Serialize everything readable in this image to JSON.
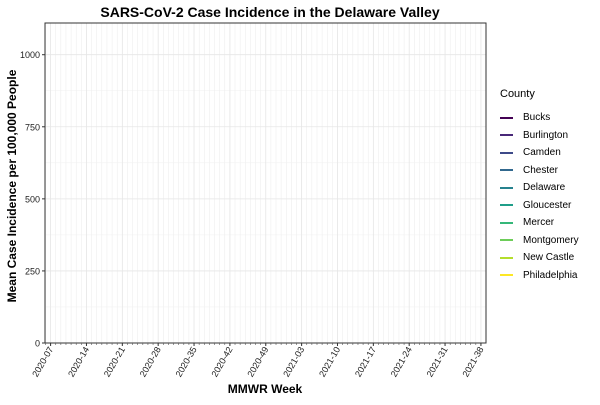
{
  "chart_data": {
    "type": "line",
    "title": "SARS-CoV-2 Case Incidence in the Delaware Valley",
    "xlabel": "MMWR Week",
    "ylabel": "Mean Case Incidence per 100,000 People",
    "ylim": [
      0,
      1110
    ],
    "y_ticks": [
      0,
      250,
      500,
      750,
      1000
    ],
    "x_ticks": [
      "2020-07",
      "2020-14",
      "2020-21",
      "2020-28",
      "2020-35",
      "2020-42",
      "2020-49",
      "2021-03",
      "2021-10",
      "2021-17",
      "2021-24",
      "2021-31",
      "2021-38"
    ],
    "grid": true,
    "legend_position": "right",
    "legend_title": "County",
    "series": [
      {
        "name": "Bucks",
        "color": "#440154",
        "values": []
      },
      {
        "name": "Burlington",
        "color": "#482878",
        "values": []
      },
      {
        "name": "Camden",
        "color": "#3E4A89",
        "values": []
      },
      {
        "name": "Chester",
        "color": "#31688E",
        "values": []
      },
      {
        "name": "Delaware",
        "color": "#26828E",
        "values": []
      },
      {
        "name": "Gloucester",
        "color": "#1F9E89",
        "values": []
      },
      {
        "name": "Mercer",
        "color": "#35B779",
        "values": []
      },
      {
        "name": "Montgomery",
        "color": "#6DCD59",
        "values": []
      },
      {
        "name": "New Castle",
        "color": "#B4DE2C",
        "values": []
      },
      {
        "name": "Philadelphia",
        "color": "#FDE725",
        "values": []
      }
    ]
  }
}
